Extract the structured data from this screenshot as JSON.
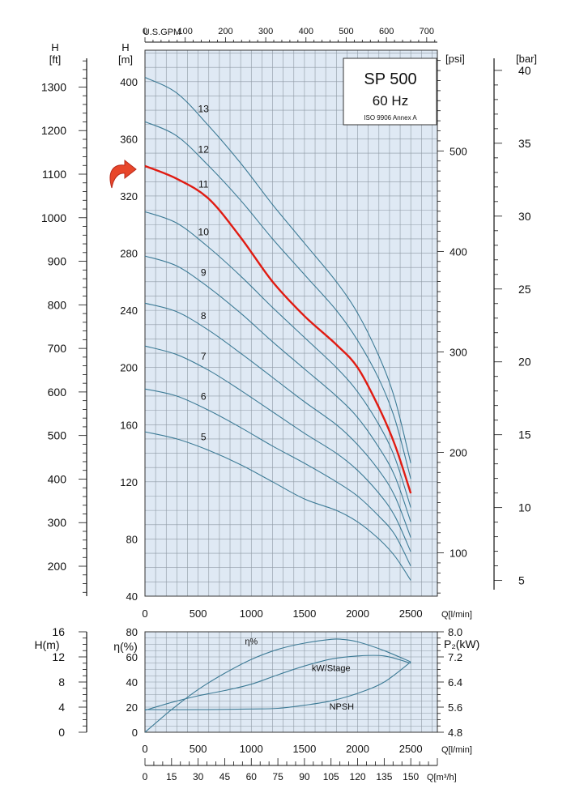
{
  "chart_data": [
    {
      "id": "performance",
      "type": "line",
      "title": "SP 500",
      "subtitle": "60 Hz",
      "note": "ISO 9906 Annex A",
      "xlabel": "Q[l/min]",
      "x_ticks": [
        0,
        500,
        1000,
        1500,
        2000,
        2500
      ],
      "xlim": [
        0,
        2750
      ],
      "top_axis_label": "U.S.GPM",
      "top_axis_ticks": [
        0,
        100,
        200,
        300,
        400,
        500,
        600,
        700
      ],
      "y_label_m": "H",
      "y_unit_m": "[m]",
      "y_ticks_m": [
        40,
        80,
        120,
        160,
        200,
        240,
        280,
        320,
        360,
        400
      ],
      "ylim_m": [
        40,
        422
      ],
      "y_label_ft": "H",
      "y_unit_ft": "[ft]",
      "y_ticks_ft": [
        200,
        300,
        400,
        500,
        600,
        700,
        800,
        900,
        1000,
        1100,
        1200,
        1300
      ],
      "psi_label": "[psi]",
      "psi_ticks": [
        100,
        200,
        300,
        400,
        500
      ],
      "bar_label": "[bar]",
      "bar_ticks": [
        5,
        10,
        15,
        20,
        25,
        30,
        35,
        40
      ],
      "highlight_series": "11",
      "colors": {
        "grid_bg": "#dfe9f4",
        "grid_line": "#8e99a3",
        "curve": "#3d7b96",
        "highlight": "#e01b12"
      },
      "series": [
        {
          "name": "5",
          "x": [
            0,
            300,
            600,
            900,
            1200,
            1500,
            1800,
            2000,
            2200,
            2350,
            2500
          ],
          "y": [
            155,
            150,
            142,
            132,
            120,
            108,
            100,
            92,
            80,
            68,
            51
          ]
        },
        {
          "name": "6",
          "x": [
            0,
            300,
            600,
            900,
            1200,
            1500,
            1800,
            2000,
            2200,
            2350,
            2500
          ],
          "y": [
            185,
            180,
            170,
            158,
            145,
            133,
            120,
            110,
            96,
            83,
            61
          ]
        },
        {
          "name": "7",
          "x": [
            0,
            300,
            600,
            900,
            1200,
            1500,
            1800,
            2000,
            2200,
            2350,
            2500
          ],
          "y": [
            215,
            209,
            198,
            184,
            169,
            154,
            140,
            128,
            112,
            96,
            71
          ]
        },
        {
          "name": "8",
          "x": [
            0,
            300,
            600,
            900,
            1200,
            1500,
            1800,
            2000,
            2200,
            2350,
            2500
          ],
          "y": [
            245,
            239,
            226,
            210,
            193,
            176,
            160,
            146,
            128,
            110,
            81
          ]
        },
        {
          "name": "9",
          "x": [
            0,
            300,
            600,
            900,
            1200,
            1500,
            1800,
            2000,
            2200,
            2350,
            2500
          ],
          "y": [
            278,
            271,
            256,
            238,
            218,
            199,
            180,
            165,
            144,
            124,
            92
          ]
        },
        {
          "name": "10",
          "x": [
            0,
            300,
            600,
            900,
            1200,
            1500,
            1800,
            2000,
            2200,
            2350,
            2500
          ],
          "y": [
            309,
            301,
            284,
            264,
            242,
            221,
            200,
            183,
            160,
            137,
            102
          ]
        },
        {
          "name": "11",
          "x": [
            0,
            300,
            600,
            900,
            1200,
            1500,
            1800,
            2000,
            2200,
            2350,
            2500
          ],
          "y": [
            341,
            332,
            318,
            291,
            260,
            236,
            216,
            200,
            172,
            146,
            112
          ]
        },
        {
          "name": "12",
          "x": [
            0,
            300,
            600,
            900,
            1200,
            1500,
            1800,
            2000,
            2200,
            2350,
            2500
          ],
          "y": [
            372,
            362,
            341,
            317,
            290,
            265,
            240,
            219,
            192,
            164,
            122
          ]
        },
        {
          "name": "13",
          "x": [
            0,
            300,
            600,
            900,
            1200,
            1500,
            1800,
            2000,
            2200,
            2350,
            2500
          ],
          "y": [
            403,
            392,
            369,
            343,
            314,
            287,
            260,
            238,
            208,
            178,
            133
          ]
        }
      ]
    },
    {
      "id": "efficiency",
      "type": "line",
      "xlabel": "Q[l/min]",
      "x_ticks": [
        0,
        500,
        1000,
        1500,
        2000,
        2500
      ],
      "xlim": [
        0,
        2750
      ],
      "y_label_eta": "η(%)",
      "y_ticks_eta": [
        0,
        20,
        40,
        60,
        80
      ],
      "ylim_eta": [
        0,
        80
      ],
      "y_label_h": "H(m)",
      "y_ticks_h": [
        0,
        4,
        8,
        12,
        16
      ],
      "ylim_h": [
        0,
        16
      ],
      "y_label_p": "P₂(kW)",
      "y_ticks_p": [
        "4.8",
        "5.6",
        "6.4",
        "7.2",
        "8.0"
      ],
      "ylim_p": [
        4.8,
        8.0
      ],
      "series": [
        {
          "name": "η%",
          "axis": "eta",
          "x": [
            0,
            250,
            500,
            750,
            1000,
            1250,
            1500,
            1750,
            1850,
            2000,
            2250,
            2500
          ],
          "y": [
            0,
            18,
            34,
            47,
            58,
            66,
            71,
            74,
            74,
            72,
            65,
            56
          ]
        },
        {
          "name": "kW/Stage",
          "axis": "p",
          "x": [
            0,
            250,
            500,
            750,
            1000,
            1250,
            1500,
            1750,
            2000,
            2250,
            2500
          ],
          "y": [
            5.5,
            5.75,
            5.96,
            6.13,
            6.33,
            6.63,
            6.91,
            7.13,
            7.23,
            7.23,
            7.0
          ]
        },
        {
          "name": "NPSH",
          "axis": "h",
          "x": [
            0,
            500,
            1000,
            1250,
            1500,
            1750,
            2000,
            2250,
            2500
          ],
          "y": [
            3.6,
            3.6,
            3.7,
            3.8,
            4.3,
            5.0,
            6.2,
            8.0,
            11.2
          ]
        }
      ]
    },
    {
      "id": "m3h-scale",
      "type": "scale",
      "label": "Q[m³/h]",
      "ticks": [
        0,
        15,
        30,
        45,
        60,
        75,
        90,
        105,
        120,
        135,
        150
      ]
    }
  ]
}
